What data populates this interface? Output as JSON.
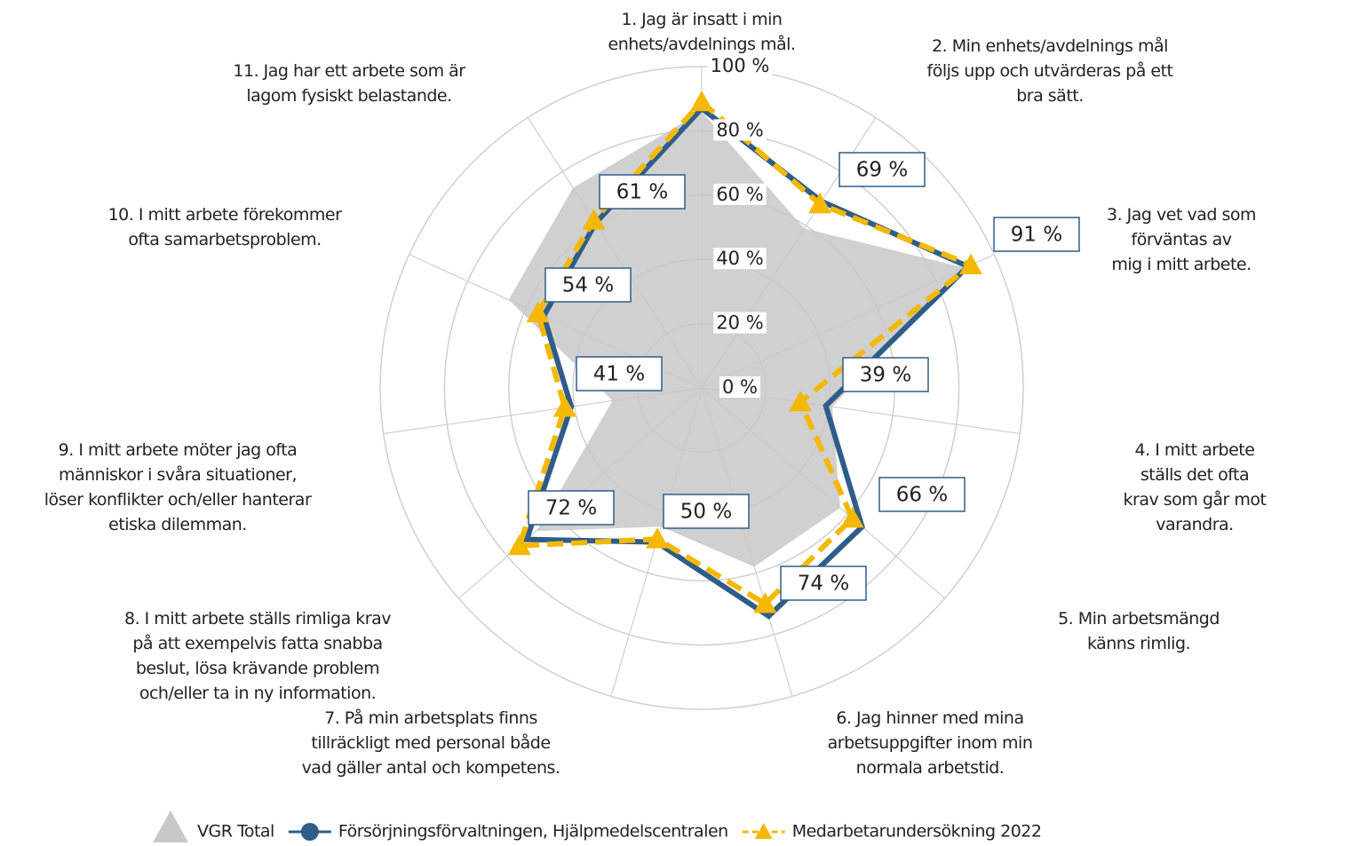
{
  "chart_data": {
    "type": "radar",
    "categories": [
      "1. Jag är insatt i min\nenhets/avdelnings mål.",
      "2. Min enhets/avdelnings mål\nföljs upp och utvärderas på ett\nbra sätt.",
      "3. Jag vet vad som förväntas av\nmig i mitt arbete.",
      "4. I mitt arbete ställs det ofta\nkrav som går mot varandra.",
      "5. Min arbetsmängd känns rimlig.",
      "6. Jag hinner med mina\narbetsuppgifter inom min\nnormala arbetstid.",
      "7. På min arbetsplats finns\ntillräckligt med personal både\nvad gäller antal och kompetens.",
      "8. I mitt arbete ställs rimliga krav\npå att exempelvis fatta snabba\nbeslut, lösa krävande problem\noch/eller ta in ny information.",
      "9. I mitt arbete möter jag ofta\nmänniskor i svåra situationer,\nlöser konflikter och/eller hanterar\netiska dilemman.",
      "10. I mitt arbete förekommer\nofta samarbetsproblem.",
      "11. Jag  har ett arbete som är\nlagom fysiskt belastande."
    ],
    "series": [
      {
        "name": "VGR Total",
        "color": "#c8c8c8",
        "style": "area",
        "values": [
          86,
          59,
          90,
          41,
          57,
          58,
          45,
          68,
          28,
          66,
          74
        ]
      },
      {
        "name": "Försörjningsförvaltningen, Hjälpmedelscentralen",
        "color": "#2f5d8a",
        "style": "line",
        "values": [
          87,
          69,
          91,
          39,
          66,
          74,
          50,
          72,
          41,
          54,
          61
        ],
        "value_labels": [
          null,
          "69 %",
          "91 %",
          "39 %",
          "66 %",
          "74 %",
          "50 %",
          "72 %",
          "41 %",
          "54 %",
          "61 %"
        ]
      },
      {
        "name": "Medarbetarundersökning 2022",
        "color": "#f5b800",
        "style": "dashed",
        "values": [
          89,
          68,
          92,
          31,
          62,
          70,
          49,
          75,
          43,
          56,
          62
        ]
      }
    ],
    "ylim": [
      0,
      100
    ],
    "yticks": [
      {
        "value": 0,
        "label": "0 %"
      },
      {
        "value": 20,
        "label": "20 %"
      },
      {
        "value": 40,
        "label": "40 %"
      },
      {
        "value": 60,
        "label": "60 %"
      },
      {
        "value": 80,
        "label": "80 %"
      },
      {
        "value": 100,
        "label": "100 %"
      }
    ],
    "grid": true,
    "legend": "bottom"
  }
}
